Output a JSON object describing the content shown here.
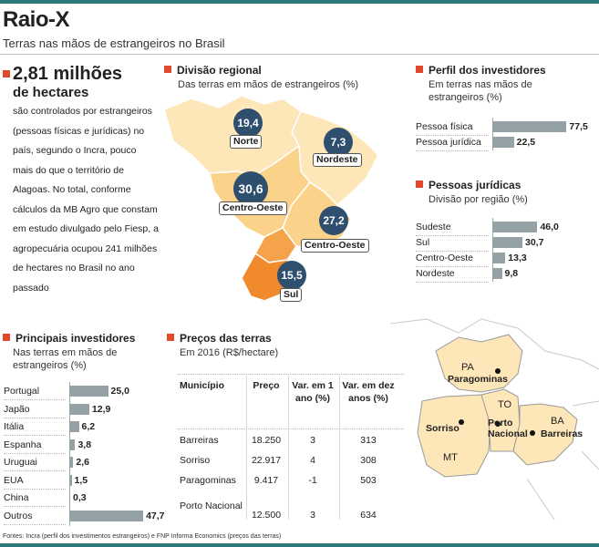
{
  "header": {
    "title": "Raio-X",
    "subtitle": "Terras nas mãos de estrangeiros no Brasil"
  },
  "lede": {
    "number": "2,81 milhões",
    "unit": "de hectares",
    "text": "são controlados por estrangeiros (pessoas físicas e jurídicas) no país, segundo o Incra, pouco mais do que o território de Alagoas. No total, conforme cálculos da MB Agro que constam em estudo divulgado pelo Fiesp, a agropecuária ocupou 241 milhões de hectares no Brasil no ano passado"
  },
  "regional": {
    "title": "Divisão regional",
    "subtitle": "Das terras em mãos de estrangeiros (%)"
  },
  "precos": {
    "title": "Preços das terras",
    "subtitle": "Em 2016 (R$/hectare)",
    "columns": [
      "Município",
      "Preço",
      "Var. em 1 ano (%)",
      "Var. em dez anos (%)"
    ],
    "rows": [
      [
        "Barreiras",
        "18.250",
        "3",
        "313"
      ],
      [
        "Sorriso",
        "22.917",
        "4",
        "308"
      ],
      [
        "Paragominas",
        "9.417",
        "-1",
        "503"
      ],
      [
        "Porto Nacional",
        "12.500",
        "3",
        "634"
      ]
    ]
  },
  "map_labels": {
    "pa": "PA",
    "mt": "MT",
    "to": "TO",
    "ba": "BA",
    "paragominas": "Paragominas",
    "sorriso": "Sorriso",
    "porto_nacional": "Porto Nacional",
    "barreiras": "Barreiras"
  },
  "footer": "Fontes: Incra (perfil dos investimentos estrangeiros) e FNP Informa Economics (preços das terras)",
  "colors": {
    "accent": "#e0492b",
    "bar": "#94a2a6",
    "bubble": "#2e4f6e",
    "region_light": "#fde6b8",
    "region_mid": "#fbd28a",
    "region_dark": "#f5a34a",
    "region_south": "#f08a2c",
    "rule": "#2b7a7b"
  },
  "chart_data": [
    {
      "type": "pie",
      "title": "Divisão regional",
      "subtitle": "Das terras em mãos de estrangeiros (%)",
      "categories": [
        "Norte",
        "Nordeste",
        "Centro-Oeste",
        "Centro-Oeste",
        "Sul"
      ],
      "values": [
        19.4,
        7.3,
        30.6,
        27.2,
        15.5
      ],
      "value_labels": [
        "19,4",
        "7,3",
        "30,6",
        "27,2",
        "15,5"
      ]
    },
    {
      "type": "bar",
      "title": "Perfil dos investidores",
      "subtitle": "Em terras nas mãos de estrangeiros (%)",
      "categories": [
        "Pessoa física",
        "Pessoa jurídica"
      ],
      "values": [
        77.5,
        22.5
      ],
      "value_labels": [
        "77,5",
        "22,5"
      ],
      "xlim": [
        0,
        80
      ]
    },
    {
      "type": "bar",
      "title": "Pessoas jurídicas",
      "subtitle": "Divisão por região (%)",
      "categories": [
        "Sudeste",
        "Sul",
        "Centro-Oeste",
        "Nordeste"
      ],
      "values": [
        46.0,
        30.7,
        13.3,
        9.8
      ],
      "value_labels": [
        "46,0",
        "30,7",
        "13,3",
        "9,8"
      ],
      "xlim": [
        0,
        80
      ]
    },
    {
      "type": "bar",
      "title": "Principais investidores",
      "subtitle": "Nas terras em mãos de estrangeiros (%)",
      "categories": [
        "Portugal",
        "Japão",
        "Itália",
        "Espanha",
        "Uruguai",
        "EUA",
        "China",
        "Outros"
      ],
      "values": [
        25.0,
        12.9,
        6.2,
        3.8,
        2.6,
        1.5,
        0.3,
        47.7
      ],
      "value_labels": [
        "25,0",
        "12,9",
        "6,2",
        "3,8",
        "2,6",
        "1,5",
        "0,3",
        "47,7"
      ],
      "xlim": [
        0,
        50
      ]
    }
  ]
}
